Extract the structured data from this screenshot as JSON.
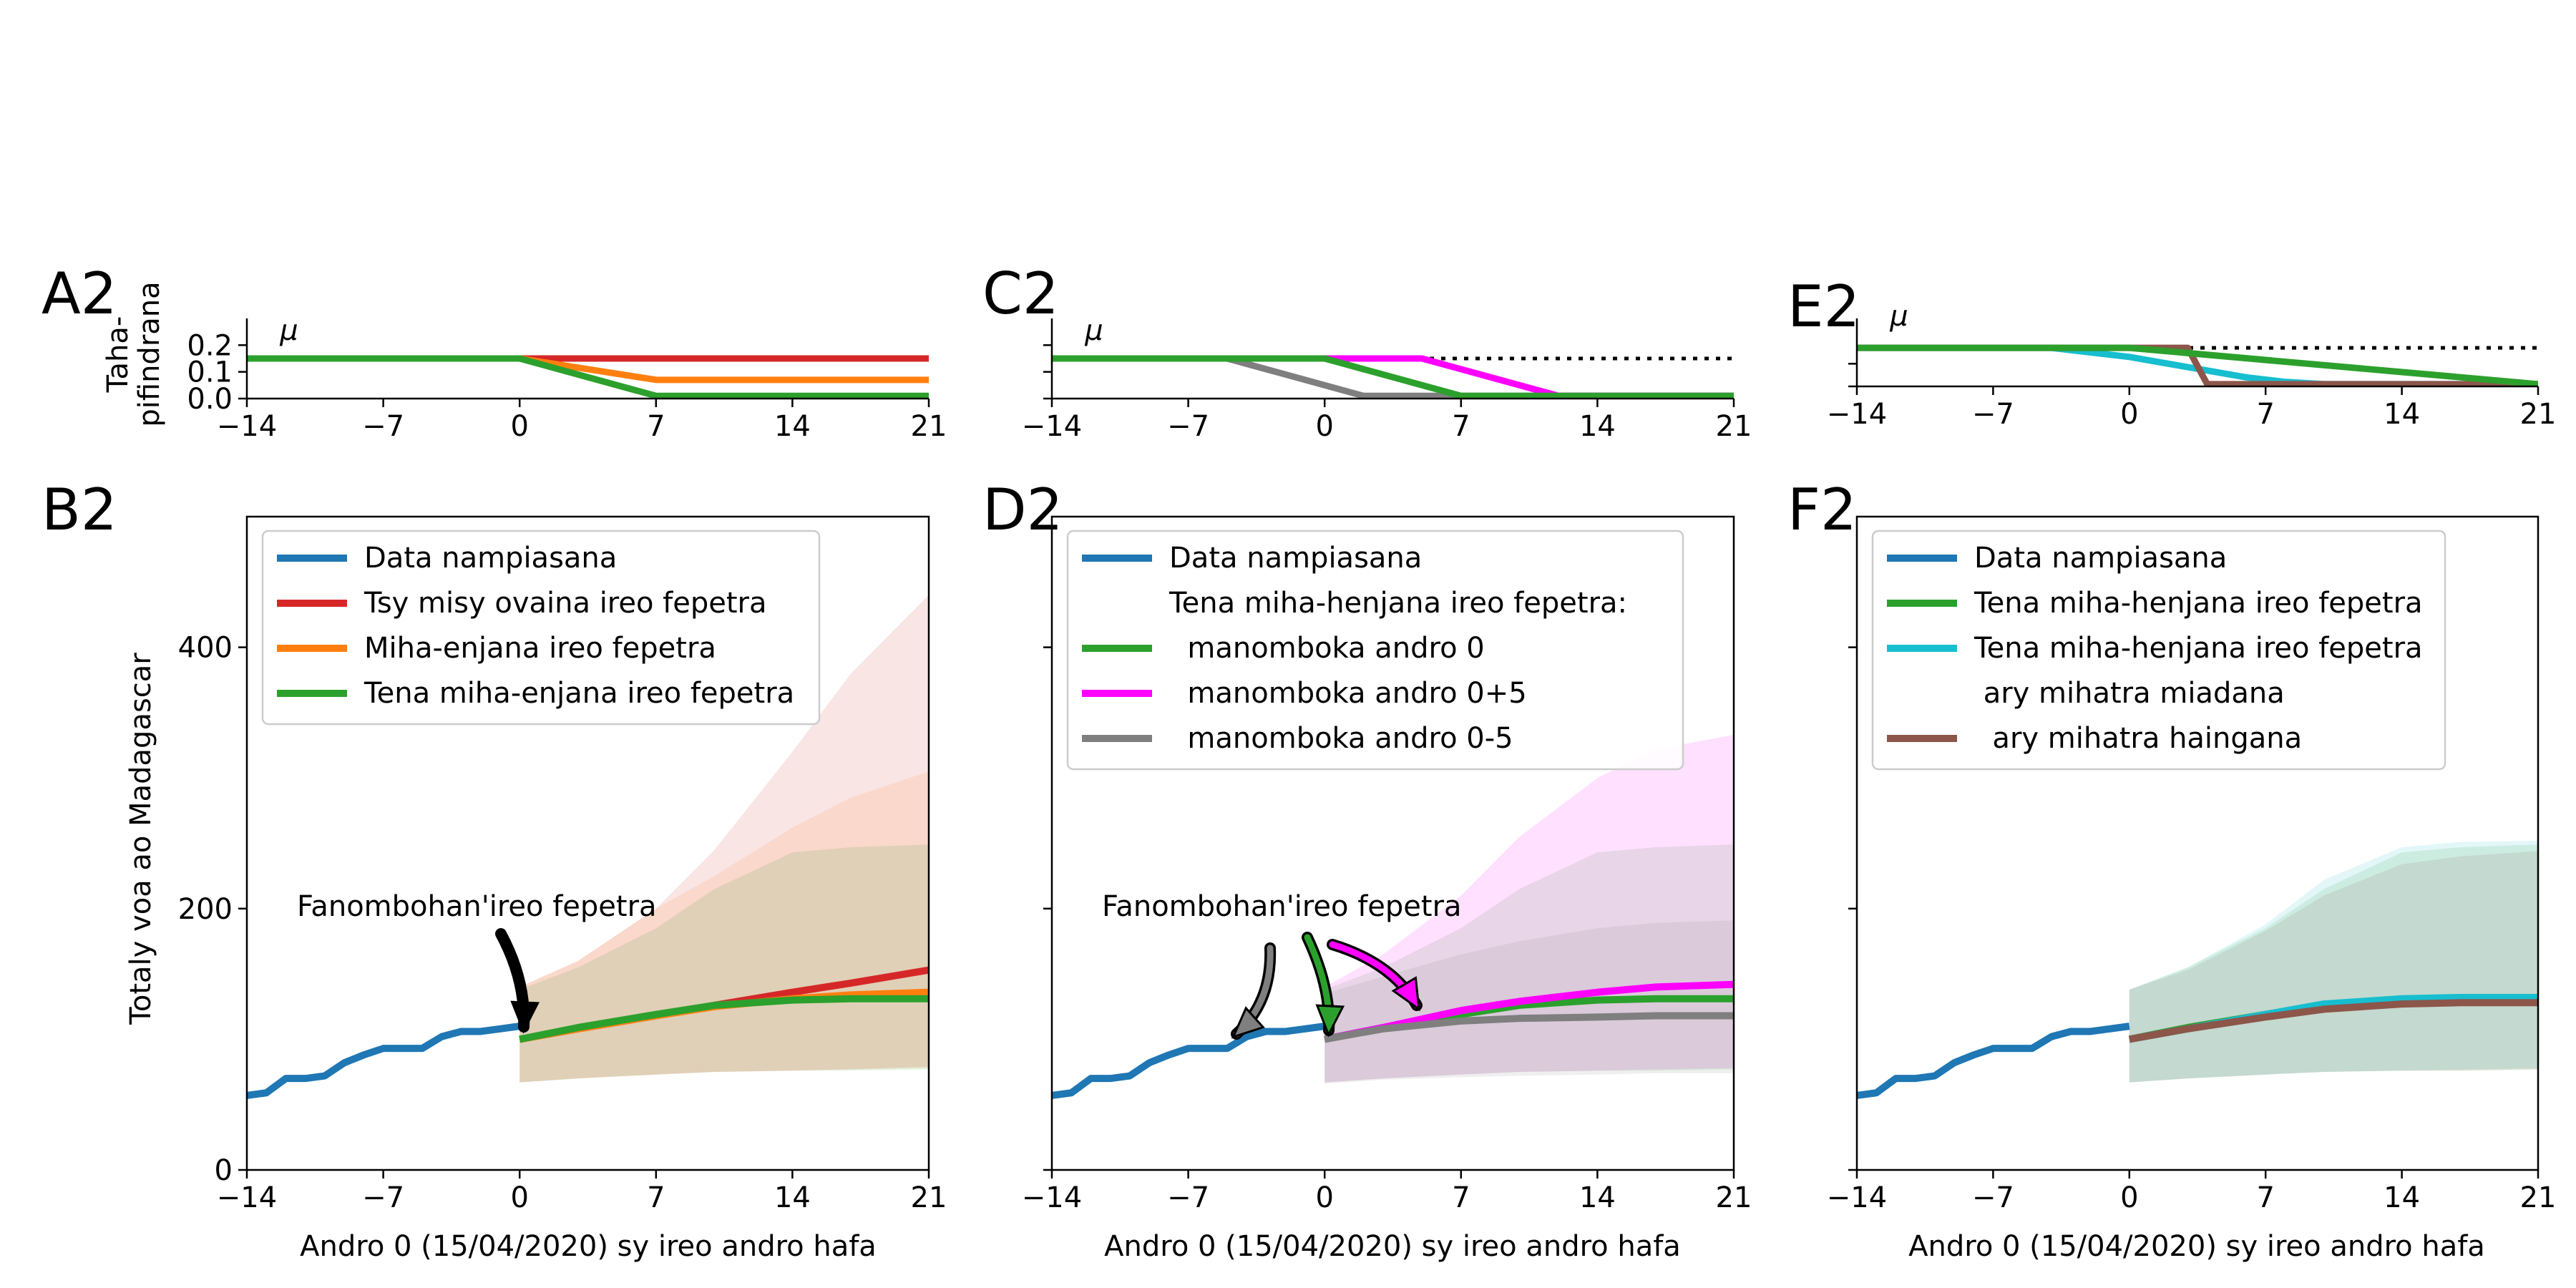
{
  "figure": {
    "ylabel_top": "Taha-\npifindrana",
    "ylabel_bottom": "Totaly voa ao Madagascar",
    "xlabel": "Andro 0 (15/04/2020) sy ireo andro hafa",
    "mu_label": "μ",
    "annotation": "Fanombohan'ireo fepetra"
  },
  "chart_data": [
    {
      "panel": "A2",
      "type": "line",
      "xlim": [
        -14,
        21
      ],
      "ylim": [
        0,
        0.3
      ],
      "xticks": [
        "−14",
        "−7",
        "0",
        "7",
        "14",
        "21"
      ],
      "yticks": [
        "0.0",
        "0.1",
        "0.2"
      ],
      "series": [
        {
          "name": "μ",
          "color": "#000000",
          "dashed": true,
          "x": [
            -14,
            21
          ],
          "y": [
            0.15,
            0.15
          ]
        },
        {
          "color": "#d62728",
          "x": [
            -14,
            0,
            21
          ],
          "y": [
            0.15,
            0.15,
            0.15
          ]
        },
        {
          "color": "#ff7f0e",
          "x": [
            -14,
            0,
            7,
            21
          ],
          "y": [
            0.15,
            0.15,
            0.07,
            0.07
          ]
        },
        {
          "color": "#2ca02c",
          "x": [
            -14,
            0,
            7,
            21
          ],
          "y": [
            0.15,
            0.15,
            0.01,
            0.01
          ]
        }
      ]
    },
    {
      "panel": "C2",
      "type": "line",
      "xlim": [
        -14,
        21
      ],
      "ylim": [
        0,
        0.3
      ],
      "xticks": [
        "−14",
        "−7",
        "0",
        "7",
        "14",
        "21"
      ],
      "series": [
        {
          "name": "μ",
          "color": "#000000",
          "dashed": true,
          "x": [
            -14,
            21
          ],
          "y": [
            0.15,
            0.15
          ]
        },
        {
          "color": "#7f7f7f",
          "x": [
            -14,
            -5,
            2,
            21
          ],
          "y": [
            0.15,
            0.15,
            0.01,
            0.01
          ]
        },
        {
          "color": "#ff00ff",
          "x": [
            -14,
            5,
            12,
            21
          ],
          "y": [
            0.15,
            0.15,
            0.01,
            0.01
          ]
        },
        {
          "color": "#2ca02c",
          "x": [
            -14,
            0,
            7,
            21
          ],
          "y": [
            0.15,
            0.15,
            0.01,
            0.01
          ]
        }
      ]
    },
    {
      "panel": "E2",
      "type": "line",
      "xlim": [
        -14,
        21
      ],
      "ylim": [
        0,
        0.3
      ],
      "xticks": [
        "−14",
        "−7",
        "0",
        "7",
        "14",
        "21"
      ],
      "series": [
        {
          "name": "μ",
          "color": "#000000",
          "dashed": true,
          "x": [
            -14,
            21
          ],
          "y": [
            0.17,
            0.17
          ]
        },
        {
          "color": "#17becf",
          "x": [
            -14,
            -4,
            -2,
            0,
            2,
            4,
            6,
            8,
            10,
            21
          ],
          "y": [
            0.17,
            0.17,
            0.15,
            0.13,
            0.1,
            0.07,
            0.04,
            0.02,
            0.01,
            0.01
          ]
        },
        {
          "color": "#8c564b",
          "x": [
            -14,
            3,
            4,
            21
          ],
          "y": [
            0.17,
            0.17,
            0.01,
            0.01
          ]
        },
        {
          "color": "#2ca02c",
          "x": [
            -14,
            0,
            21
          ],
          "y": [
            0.17,
            0.17,
            0.01
          ]
        }
      ]
    },
    {
      "panel": "B2",
      "type": "line",
      "xlim": [
        -14,
        21
      ],
      "ylim": [
        0,
        500
      ],
      "xticks": [
        "−14",
        "−7",
        "0",
        "7",
        "14",
        "21"
      ],
      "yticks": [
        "0",
        "200",
        "400"
      ],
      "legend": "top-left",
      "series": [
        {
          "name": "Data nampiasana",
          "color": "#1f77b4",
          "x": [
            -14,
            -13,
            -12,
            -11,
            -10,
            -9,
            -8,
            -7,
            -6,
            -5,
            -4,
            -3,
            -2,
            -1,
            0
          ],
          "y": [
            57,
            59,
            70,
            70,
            72,
            82,
            88,
            93,
            93,
            93,
            102,
            106,
            106,
            108,
            110
          ]
        },
        {
          "name": "Tsy misy ovaina ireo fepetra",
          "color": "#d62728",
          "x": [
            0,
            3,
            7,
            10,
            14,
            17,
            21
          ],
          "y": [
            100,
            108,
            118,
            126,
            136,
            143,
            153
          ],
          "band": {
            "x": [
              0,
              3,
              7,
              10,
              14,
              17,
              21
            ],
            "lo": [
              67,
              70,
              73,
              75,
              76,
              77,
              79
            ],
            "hi": [
              140,
              160,
              200,
              245,
              320,
              380,
              440
            ]
          }
        },
        {
          "name": "Miha-enjana ireo fepetra",
          "color": "#ff7f0e",
          "x": [
            0,
            3,
            7,
            10,
            14,
            17,
            21
          ],
          "y": [
            100,
            108,
            118,
            125,
            131,
            134,
            136
          ],
          "band": {
            "x": [
              0,
              3,
              7,
              10,
              14,
              17,
              21
            ],
            "lo": [
              67,
              70,
              73,
              75,
              76,
              77,
              78
            ],
            "hi": [
              140,
              160,
              200,
              225,
              262,
              285,
              305
            ]
          }
        },
        {
          "name": "Tena miha-enjana ireo fepetra",
          "color": "#2ca02c",
          "x": [
            0,
            3,
            7,
            10,
            14,
            17,
            21
          ],
          "y": [
            100,
            109,
            119,
            126,
            130,
            131,
            131
          ],
          "band": {
            "x": [
              0,
              3,
              7,
              10,
              14,
              17,
              21
            ],
            "lo": [
              67,
              70,
              73,
              75,
              76,
              76,
              77
            ],
            "hi": [
              138,
              155,
              185,
              215,
              243,
              247,
              249
            ]
          }
        }
      ]
    },
    {
      "panel": "D2",
      "type": "line",
      "xlim": [
        -14,
        21
      ],
      "ylim": [
        0,
        500
      ],
      "xticks": [
        "−14",
        "−7",
        "0",
        "7",
        "14",
        "21"
      ],
      "legend": "top-left",
      "legend_heading": "Tena miha-henjana ireo fepetra:",
      "series": [
        {
          "name": "Data nampiasana",
          "color": "#1f77b4",
          "x": [
            -14,
            -13,
            -12,
            -11,
            -10,
            -9,
            -8,
            -7,
            -6,
            -5,
            -4,
            -3,
            -2,
            -1,
            0
          ],
          "y": [
            57,
            59,
            70,
            70,
            72,
            82,
            88,
            93,
            93,
            93,
            102,
            106,
            106,
            108,
            110
          ]
        },
        {
          "name": "  manomboka andro 0",
          "color": "#2ca02c",
          "x": [
            0,
            3,
            7,
            10,
            14,
            17,
            21
          ],
          "y": [
            100,
            109,
            119,
            126,
            130,
            131,
            131
          ],
          "band": {
            "x": [
              0,
              3,
              7,
              10,
              14,
              17,
              21
            ],
            "lo": [
              67,
              70,
              73,
              75,
              76,
              76,
              77
            ],
            "hi": [
              138,
              155,
              185,
              215,
              243,
              247,
              249
            ]
          }
        },
        {
          "name": "  manomboka andro 0+5",
          "color": "#ff00ff",
          "x": [
            0,
            3,
            7,
            10,
            14,
            17,
            21
          ],
          "y": [
            100,
            109,
            122,
            129,
            136,
            140,
            142
          ],
          "band": {
            "x": [
              0,
              3,
              7,
              10,
              14,
              17,
              21
            ],
            "lo": [
              67,
              70,
              73,
              75,
              76,
              77,
              78
            ],
            "hi": [
              140,
              165,
              210,
              255,
              300,
              322,
              333
            ]
          }
        },
        {
          "name": "  manomboka andro 0-5",
          "color": "#7f7f7f",
          "x": [
            0,
            3,
            7,
            10,
            14,
            17,
            21
          ],
          "y": [
            100,
            108,
            114,
            116,
            117,
            118,
            118
          ],
          "band": {
            "x": [
              0,
              3,
              7,
              10,
              14,
              17,
              21
            ],
            "lo": [
              66,
              69,
              71,
              72,
              73,
              74,
              74
            ],
            "hi": [
              135,
              148,
              165,
              175,
              185,
              189,
              191
            ]
          }
        }
      ]
    },
    {
      "panel": "F2",
      "type": "line",
      "xlim": [
        -14,
        21
      ],
      "ylim": [
        0,
        500
      ],
      "xticks": [
        "−14",
        "−7",
        "0",
        "7",
        "14",
        "21"
      ],
      "legend": "top-left",
      "series": [
        {
          "name": "Data nampiasana",
          "color": "#1f77b4",
          "x": [
            -14,
            -13,
            -12,
            -11,
            -10,
            -9,
            -8,
            -7,
            -6,
            -5,
            -4,
            -3,
            -2,
            -1,
            0
          ],
          "y": [
            57,
            59,
            70,
            70,
            72,
            82,
            88,
            93,
            93,
            93,
            102,
            106,
            106,
            108,
            110
          ]
        },
        {
          "name": "Tena miha-henjana ireo fepetra",
          "color": "#2ca02c",
          "x": [
            0,
            3,
            7,
            10,
            14,
            17,
            21
          ],
          "y": [
            100,
            109,
            119,
            126,
            130,
            131,
            131
          ],
          "band": {
            "x": [
              0,
              3,
              7,
              10,
              14,
              17,
              21
            ],
            "lo": [
              67,
              70,
              73,
              75,
              76,
              76,
              77
            ],
            "hi": [
              138,
              155,
              185,
              215,
              243,
              247,
              249
            ]
          }
        },
        {
          "name": "Tena miha-henjana ireo fepetra\n ary mihatra miadana",
          "color": "#17becf",
          "x": [
            0,
            3,
            7,
            10,
            14,
            17,
            21
          ],
          "y": [
            100,
            108,
            119,
            127,
            131,
            132,
            132
          ],
          "band": {
            "x": [
              0,
              3,
              7,
              10,
              14,
              17,
              21
            ],
            "lo": [
              67,
              70,
              73,
              75,
              76,
              77,
              78
            ],
            "hi": [
              138,
              155,
              188,
              222,
              247,
              251,
              252
            ]
          }
        },
        {
          "name": "  ary mihatra haingana",
          "color": "#8c564b",
          "x": [
            0,
            3,
            7,
            10,
            14,
            17,
            21
          ],
          "y": [
            100,
            108,
            117,
            123,
            127,
            128,
            128
          ],
          "band": {
            "x": [
              0,
              3,
              7,
              10,
              14,
              17,
              21
            ],
            "lo": [
              67,
              70,
              73,
              75,
              76,
              76,
              77
            ],
            "hi": [
              138,
              153,
              183,
              210,
              234,
              240,
              244
            ]
          }
        }
      ]
    }
  ]
}
